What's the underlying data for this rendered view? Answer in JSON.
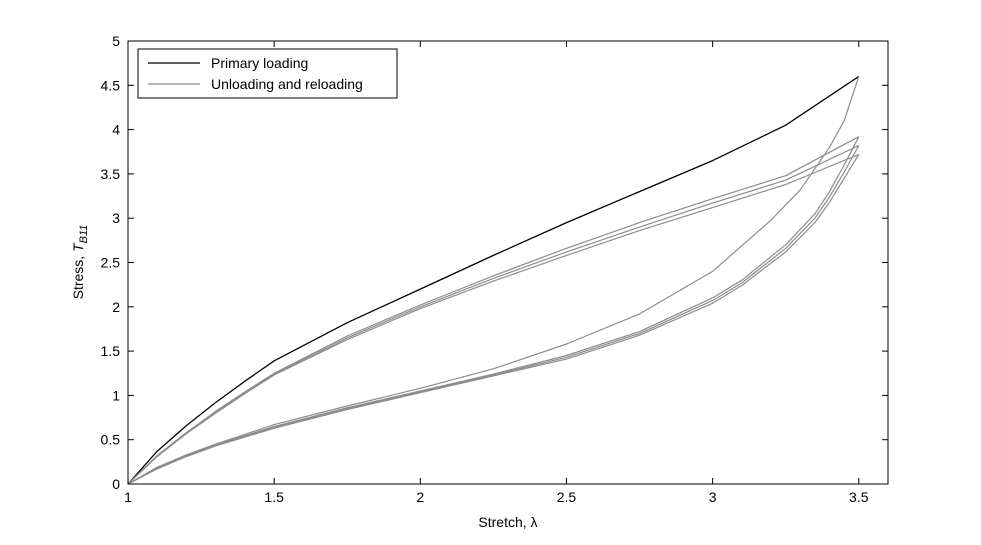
{
  "chart_data": {
    "type": "line",
    "xlabel": "Stretch, λ",
    "ylabel_prefix": "Stress, ",
    "ylabel_symbol": "T",
    "ylabel_subscript": "B11",
    "xlim": [
      1,
      3.6
    ],
    "ylim": [
      0,
      5
    ],
    "xticks": [
      1,
      1.5,
      2,
      2.5,
      3,
      3.5
    ],
    "xtick_labels": [
      "1",
      "1.5",
      "2",
      "2.5",
      "3",
      "3.5"
    ],
    "yticks": [
      0,
      0.5,
      1,
      1.5,
      2,
      2.5,
      3,
      3.5,
      4,
      4.5,
      5
    ],
    "ytick_labels": [
      "0",
      "0.5",
      "1",
      "1.5",
      "2",
      "2.5",
      "3",
      "3.5",
      "4",
      "4.5",
      "5"
    ],
    "grid": false,
    "legend_position": "top-left",
    "colors": {
      "primary": "#000000",
      "cycle": "#8c8c8c"
    },
    "series": [
      {
        "name": "Primary loading",
        "color": "#000000",
        "x": [
          1.0,
          1.1,
          1.2,
          1.3,
          1.4,
          1.5,
          1.75,
          2.0,
          2.25,
          2.5,
          2.75,
          3.0,
          3.25,
          3.5
        ],
        "y": [
          0.0,
          0.37,
          0.66,
          0.92,
          1.16,
          1.39,
          1.82,
          2.2,
          2.58,
          2.95,
          3.3,
          3.65,
          4.05,
          4.6
        ]
      },
      {
        "name": "Unloading and reloading",
        "color": "#8c8c8c",
        "x": [
          3.5,
          3.45,
          3.4,
          3.3,
          3.2,
          3.0,
          2.75,
          2.5,
          2.25,
          2.0,
          1.75,
          1.5,
          1.3,
          1.2,
          1.1,
          1.0
        ],
        "y": [
          4.6,
          4.1,
          3.8,
          3.32,
          2.98,
          2.4,
          1.92,
          1.58,
          1.3,
          1.08,
          0.88,
          0.67,
          0.45,
          0.33,
          0.19,
          0.0
        ]
      },
      {
        "name": "",
        "color": "#8c8c8c",
        "x": [
          1.0,
          1.1,
          1.2,
          1.3,
          1.4,
          1.5,
          1.75,
          2.0,
          2.25,
          2.5,
          2.75,
          3.0,
          3.25,
          3.5
        ],
        "y": [
          0.0,
          0.32,
          0.58,
          0.82,
          1.04,
          1.25,
          1.67,
          2.02,
          2.35,
          2.66,
          2.95,
          3.22,
          3.48,
          3.92
        ]
      },
      {
        "name": "",
        "color": "#8c8c8c",
        "x": [
          3.5,
          3.45,
          3.4,
          3.35,
          3.25,
          3.1,
          3.0,
          2.75,
          2.5,
          2.25,
          2.0,
          1.75,
          1.5,
          1.3,
          1.2,
          1.1,
          1.0
        ],
        "y": [
          3.92,
          3.6,
          3.3,
          3.05,
          2.7,
          2.3,
          2.1,
          1.72,
          1.45,
          1.24,
          1.05,
          0.86,
          0.65,
          0.44,
          0.32,
          0.18,
          0.0
        ]
      },
      {
        "name": "",
        "color": "#8c8c8c",
        "x": [
          1.0,
          1.1,
          1.2,
          1.3,
          1.4,
          1.5,
          1.75,
          2.0,
          2.25,
          2.5,
          2.75,
          3.0,
          3.25,
          3.5
        ],
        "y": [
          0.0,
          0.32,
          0.58,
          0.81,
          1.03,
          1.24,
          1.65,
          2.0,
          2.32,
          2.62,
          2.9,
          3.17,
          3.43,
          3.82
        ]
      },
      {
        "name": "",
        "color": "#8c8c8c",
        "x": [
          3.5,
          3.45,
          3.4,
          3.35,
          3.25,
          3.1,
          3.0,
          2.75,
          2.5,
          2.25,
          2.0,
          1.75,
          1.5,
          1.3,
          1.2,
          1.1,
          1.0
        ],
        "y": [
          3.82,
          3.52,
          3.24,
          3.0,
          2.66,
          2.27,
          2.07,
          1.7,
          1.43,
          1.23,
          1.04,
          0.85,
          0.64,
          0.44,
          0.32,
          0.18,
          0.0
        ]
      },
      {
        "name": "",
        "color": "#8c8c8c",
        "x": [
          1.0,
          1.1,
          1.2,
          1.3,
          1.4,
          1.5,
          1.75,
          2.0,
          2.25,
          2.5,
          2.75,
          3.0,
          3.25,
          3.5
        ],
        "y": [
          0.0,
          0.31,
          0.57,
          0.8,
          1.02,
          1.23,
          1.63,
          1.98,
          2.29,
          2.58,
          2.86,
          3.12,
          3.38,
          3.72
        ]
      },
      {
        "name": "",
        "color": "#8c8c8c",
        "x": [
          3.5,
          3.45,
          3.4,
          3.35,
          3.25,
          3.1,
          3.0,
          2.75,
          2.5,
          2.25,
          2.0,
          1.75,
          1.5,
          1.3,
          1.2,
          1.1,
          1.0
        ],
        "y": [
          3.72,
          3.45,
          3.18,
          2.95,
          2.62,
          2.24,
          2.04,
          1.68,
          1.41,
          1.22,
          1.03,
          0.84,
          0.63,
          0.43,
          0.31,
          0.17,
          0.0
        ]
      }
    ]
  }
}
